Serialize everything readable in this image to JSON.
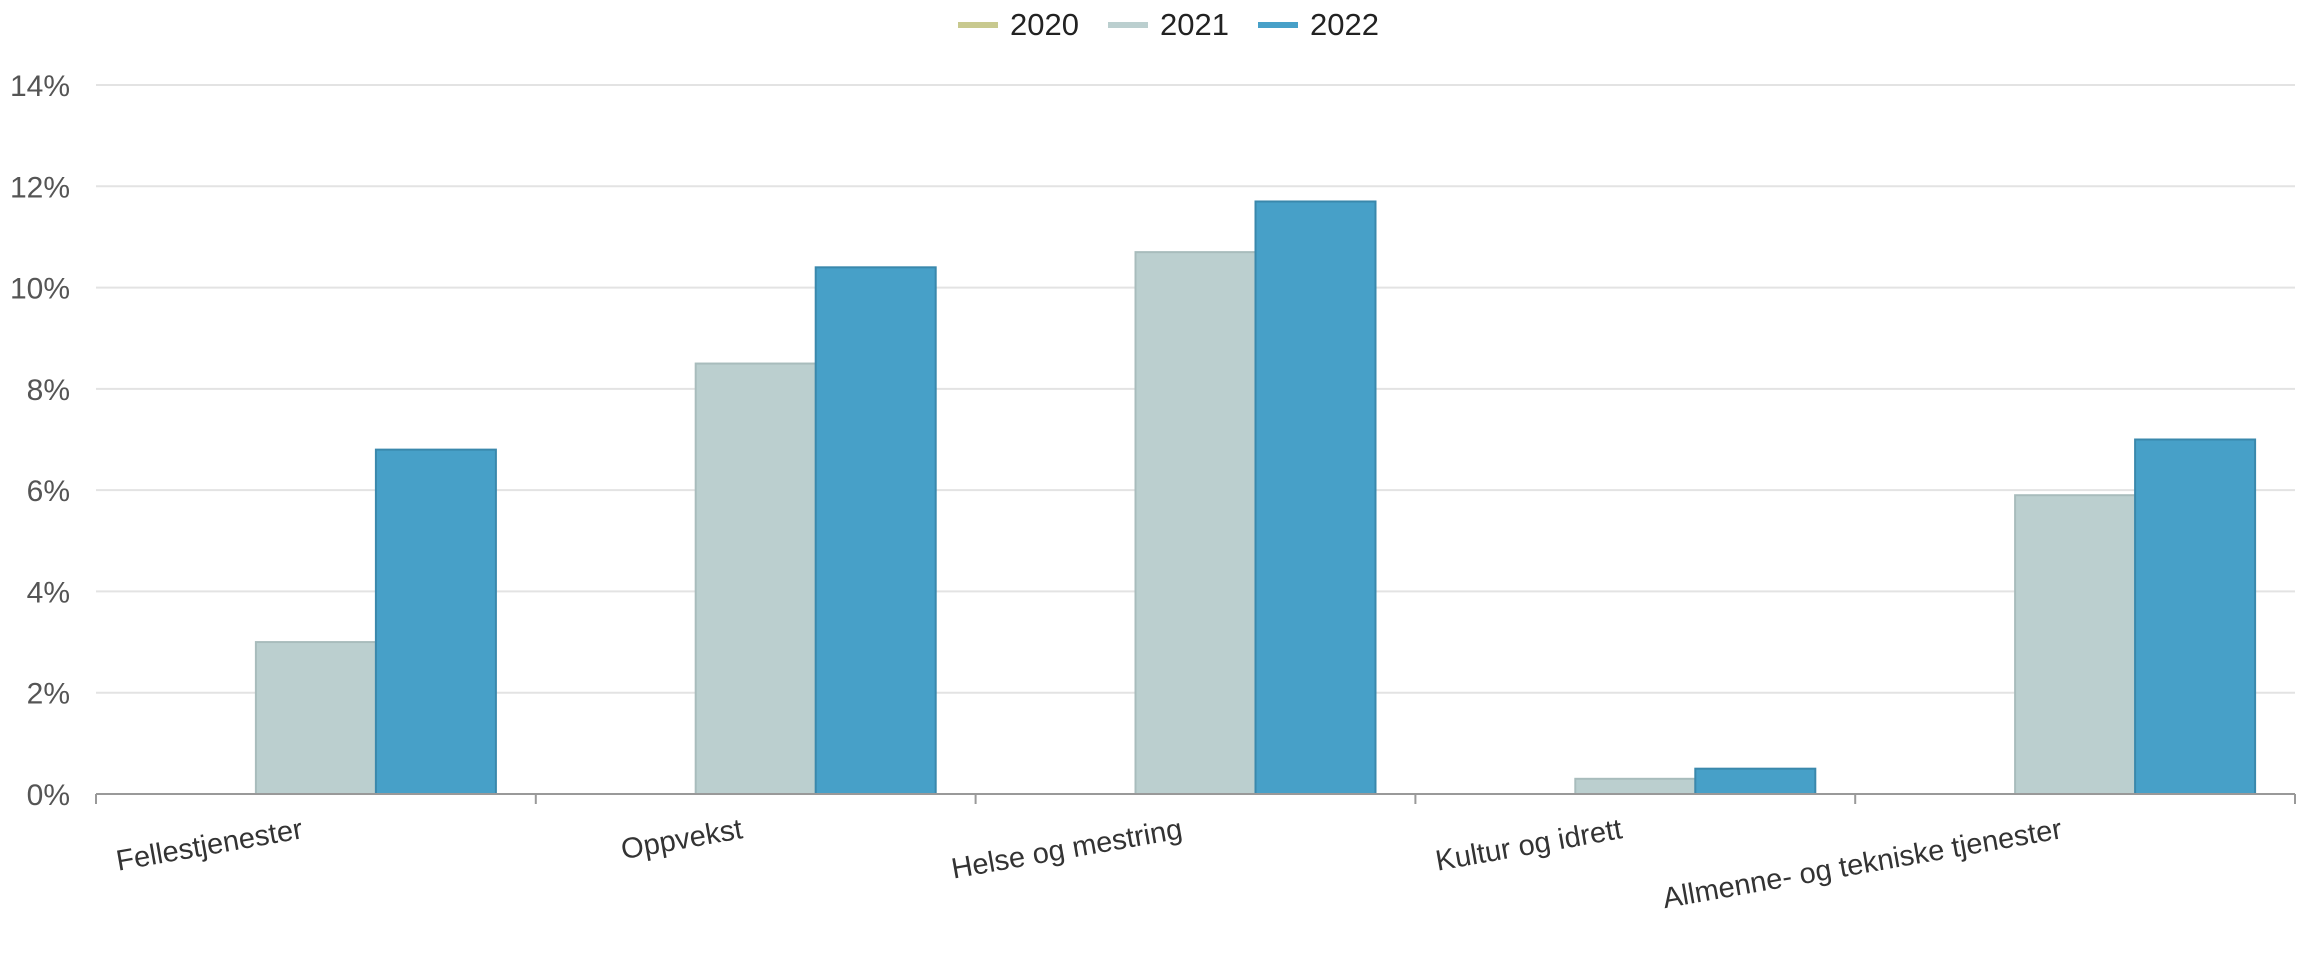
{
  "chart_data": {
    "type": "bar",
    "categories": [
      "Fellestjenester",
      "Oppvekst",
      "Helse og mestring",
      "Kultur og idrett",
      "Allmenne- og tekniske tjenester"
    ],
    "series": [
      {
        "name": "2020",
        "color": "#c8c98f",
        "values": [
          0,
          0,
          0,
          0,
          0
        ]
      },
      {
        "name": "2021",
        "color": "#bbcfcf",
        "values": [
          3.0,
          8.5,
          10.7,
          0.3,
          5.9
        ]
      },
      {
        "name": "2022",
        "color": "#47a0c8",
        "values": [
          6.8,
          10.4,
          11.7,
          0.5,
          7.0
        ]
      }
    ],
    "y_ticks": [
      "0%",
      "2%",
      "4%",
      "6%",
      "8%",
      "10%",
      "12%",
      "14%"
    ],
    "ylim": [
      0,
      14
    ],
    "y_unit": "%",
    "grid": true,
    "legend_position": "top-center",
    "title": "",
    "xlabel": "",
    "ylabel": ""
  }
}
